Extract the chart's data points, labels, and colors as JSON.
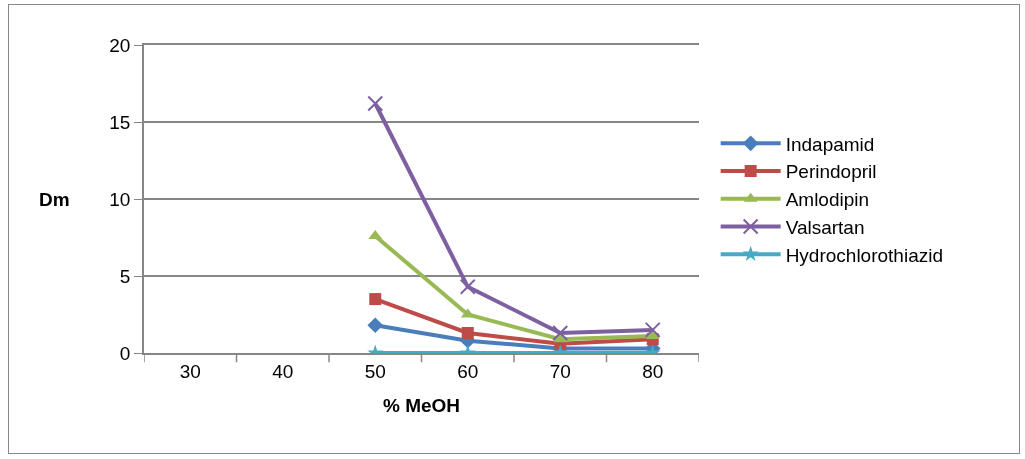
{
  "chart_data": {
    "type": "line",
    "xlabel": "% MeOH",
    "ylabel": "Dm",
    "categories": [
      "30",
      "40",
      "50",
      "60",
      "70",
      "80"
    ],
    "series": [
      {
        "name": "Indapamid",
        "color": "#4a7ebb",
        "marker": "diamond",
        "values": [
          null,
          null,
          1.8,
          0.8,
          0.3,
          0.3
        ]
      },
      {
        "name": "Perindopril",
        "color": "#be4b48",
        "marker": "square",
        "values": [
          null,
          null,
          3.5,
          1.3,
          0.6,
          0.9
        ]
      },
      {
        "name": "Amlodipin",
        "color": "#98b954",
        "marker": "triangle",
        "values": [
          null,
          null,
          7.6,
          2.5,
          0.9,
          1.1
        ]
      },
      {
        "name": "Valsartan",
        "color": "#7d60a0",
        "marker": "cross",
        "values": [
          null,
          null,
          16.2,
          4.3,
          1.3,
          1.5
        ]
      },
      {
        "name": "Hydrochlorothiazid",
        "color": "#46aac5",
        "marker": "star",
        "values": [
          null,
          null,
          0,
          0,
          0,
          0
        ]
      }
    ],
    "ylim": [
      0,
      20
    ],
    "yticks": [
      0,
      5,
      10,
      15,
      20
    ],
    "grid": "y",
    "legend": "right",
    "line_style": "solid"
  }
}
